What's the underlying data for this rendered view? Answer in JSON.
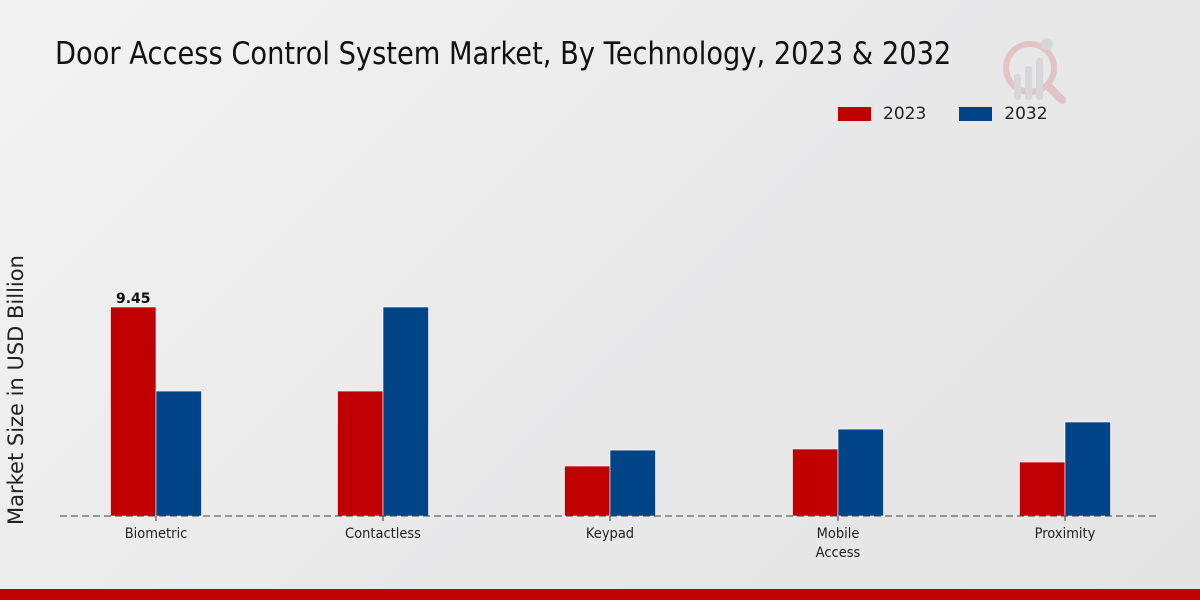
{
  "chart_data": {
    "type": "bar",
    "title": "Door Access Control System Market, By Technology, 2023 & 2032",
    "xlabel": "",
    "ylabel": "Market Size in USD Billion",
    "categories": [
      "Biometric",
      "Contactless",
      "Keypad",
      "Mobile\nAccess",
      "Proximity"
    ],
    "category_lines": [
      [
        "Biometric"
      ],
      [
        "Contactless"
      ],
      [
        "Keypad"
      ],
      [
        "Mobile",
        "Access"
      ],
      [
        "Proximity"
      ]
    ],
    "series": [
      {
        "name": "2023",
        "color": "#c00000",
        "values": [
          9.45,
          5.65,
          2.26,
          3.03,
          2.44
        ]
      },
      {
        "name": "2032",
        "color": "#004488",
        "values": [
          5.65,
          9.45,
          2.98,
          3.93,
          4.25
        ]
      }
    ],
    "data_labels": [
      {
        "series": "2023",
        "category": "Biometric",
        "text": "9.45"
      }
    ],
    "ylim": [
      0,
      12
    ],
    "grid": false,
    "legend_position": "top-right"
  },
  "colors": {
    "accent": "#c00000",
    "secondary": "#004488",
    "footer": "#c00000"
  }
}
